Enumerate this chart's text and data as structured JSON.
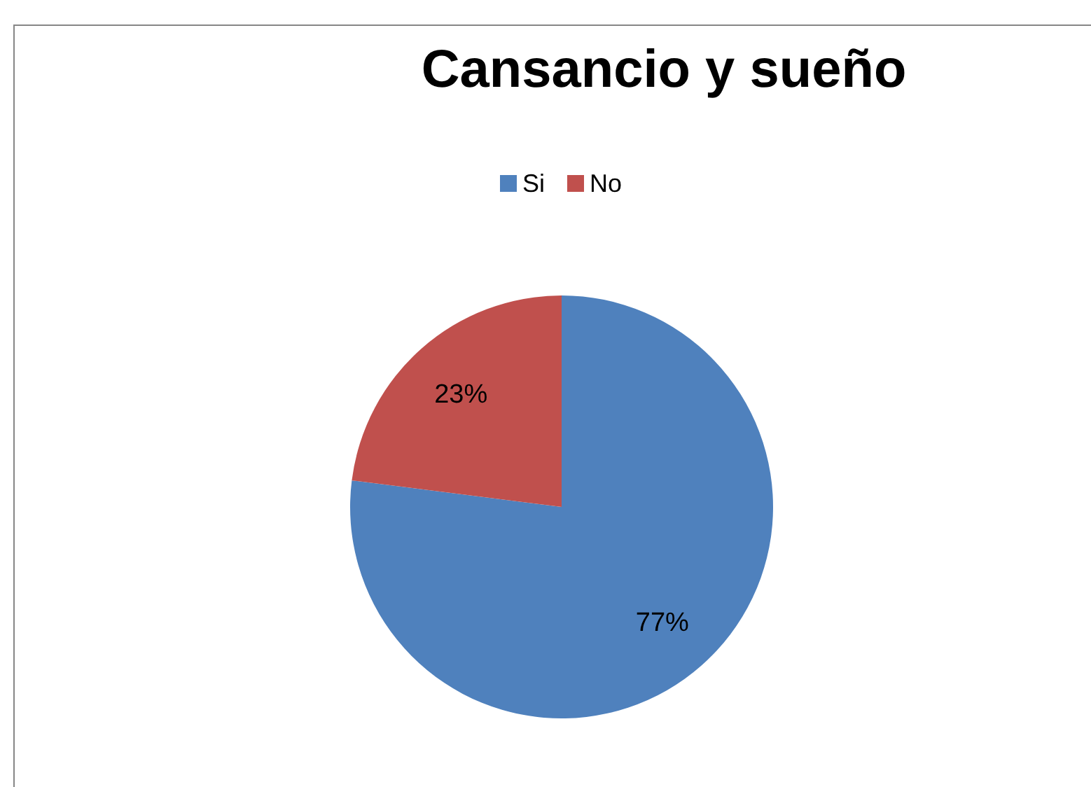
{
  "chart_data": {
    "type": "pie",
    "title": "Cansancio y sueño",
    "categories": [
      "Si",
      "No"
    ],
    "values": [
      77,
      23
    ],
    "colors": [
      "#4f81bd",
      "#c0504d"
    ],
    "value_labels": [
      "77%",
      "23%"
    ],
    "legend": "top"
  }
}
